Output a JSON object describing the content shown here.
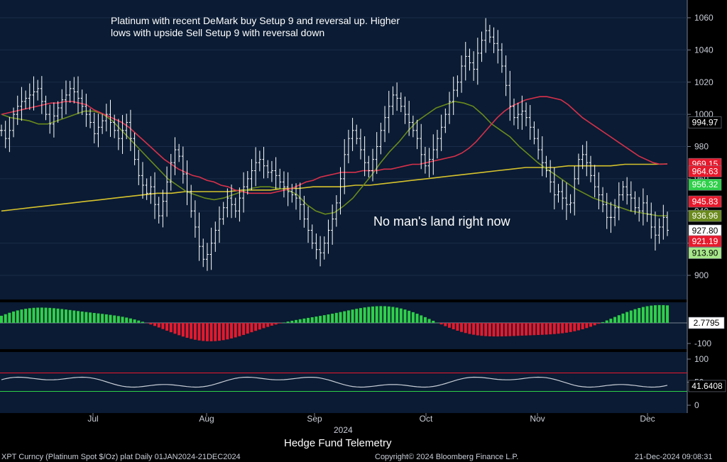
{
  "chart_data": {
    "type": "line",
    "annotation_text": [
      "Platinum with recent DeMark buy Setup 9 and reversal up.  Higher",
      "lows with upside Sell Setup 9 with reversal down"
    ],
    "no_mans_land": "No man's land right now",
    "x_months": [
      "Jul",
      "Aug",
      "Sep",
      "Oct",
      "Nov",
      "Dec"
    ],
    "x_year": "2024",
    "price_axis": {
      "ticks": [
        900,
        920,
        940,
        960,
        980,
        1000,
        1020,
        1040,
        1060
      ],
      "ylim": [
        880,
        1067
      ]
    },
    "price_close": [
      990,
      985,
      990,
      1000,
      1005,
      1008,
      1010,
      1012,
      1014,
      1016,
      1008,
      1000,
      994,
      999,
      1004,
      1009,
      1012,
      1016,
      1014,
      1010,
      1005,
      1000,
      995,
      988,
      992,
      996,
      1000,
      995,
      990,
      985,
      990,
      995,
      985,
      972,
      962,
      956,
      951,
      955,
      944,
      937,
      946,
      958,
      970,
      978,
      974,
      963,
      952,
      940,
      930,
      918,
      910,
      913,
      920,
      928,
      935,
      942,
      948,
      944,
      940,
      948,
      955,
      960,
      965,
      970,
      972,
      968,
      964,
      965,
      962,
      958,
      955,
      952,
      950,
      948,
      944,
      935,
      928,
      920,
      916,
      914,
      920,
      928,
      935,
      945,
      960,
      975,
      985,
      990,
      985,
      978,
      970,
      965,
      972,
      980,
      990,
      998,
      1005,
      1012,
      1010,
      1005,
      1000,
      995,
      990,
      985,
      975,
      968,
      972,
      978,
      985,
      992,
      1000,
      1008,
      1015,
      1020,
      1030,
      1036,
      1032,
      1028,
      1038,
      1046,
      1052,
      1048,
      1044,
      1040,
      1030,
      1018,
      1005,
      998,
      1000,
      1002,
      998,
      992,
      985,
      978,
      970,
      965,
      958,
      950,
      952,
      948,
      944,
      945,
      960,
      972,
      975,
      970,
      962,
      955,
      950,
      944,
      936,
      936,
      942,
      950,
      955,
      950,
      948,
      942,
      940,
      945,
      938,
      930,
      925,
      930,
      936,
      928
    ],
    "ma_red": [
      1000,
      1001,
      1002,
      1003,
      1004,
      1005,
      1006,
      1007,
      1007,
      1008,
      1008,
      1007,
      1006,
      1003,
      1001,
      999,
      997,
      995,
      992,
      988,
      984,
      980,
      976,
      972,
      969,
      966,
      964,
      962,
      961,
      959,
      958,
      956,
      955,
      953,
      952,
      951,
      951,
      951,
      951,
      952,
      953,
      954,
      956,
      958,
      959,
      961,
      962,
      963,
      964,
      964,
      964,
      965,
      965,
      965,
      966,
      966,
      967,
      968,
      969,
      969,
      970,
      971,
      972,
      973,
      974,
      976,
      979,
      983,
      988,
      993,
      998,
      1002,
      1005,
      1007,
      1009,
      1010,
      1011,
      1011,
      1010,
      1009,
      1006,
      1002,
      998,
      995,
      992,
      989,
      986,
      983,
      980,
      977,
      974,
      972,
      970,
      969,
      969.15
    ],
    "ma_green": [
      1000,
      998,
      997,
      996,
      994,
      994,
      996,
      998,
      1000,
      1002,
      1002,
      1000,
      996,
      990,
      984,
      978,
      972,
      966,
      960,
      956,
      952,
      950,
      948,
      947,
      948,
      950,
      952,
      954,
      955,
      955,
      954,
      953,
      950,
      944,
      940,
      938,
      939,
      943,
      948,
      955,
      962,
      970,
      977,
      983,
      990,
      996,
      1000,
      1004,
      1006,
      1008,
      1007,
      1005,
      1000,
      994,
      990,
      986,
      980,
      975,
      970,
      966,
      962,
      958,
      954,
      951,
      948,
      946,
      944,
      942,
      940,
      939,
      938,
      937,
      936.96
    ],
    "ma_yellow": [
      940,
      941,
      942,
      943,
      944,
      945,
      946,
      947,
      948,
      949,
      950,
      951,
      951,
      952,
      952,
      952,
      952,
      953,
      953,
      953,
      954,
      954,
      955,
      955,
      955,
      956,
      956,
      957,
      958,
      959,
      960,
      961,
      962,
      963,
      964,
      965,
      966,
      967,
      967,
      967,
      968,
      968,
      968,
      968,
      969,
      969,
      969,
      969.2
    ],
    "osc_axis": {
      "ticks": [
        -100
      ],
      "value": 2.7795
    },
    "rsi_axis": {
      "ticks": [
        0,
        50,
        100
      ],
      "value": 41.6408
    },
    "value_labels": [
      {
        "text": "994.97",
        "value": 994.97,
        "bg": "#000000",
        "fg": "#ffffff"
      },
      {
        "text": "969.15",
        "value": 969.15,
        "bg": "#e8192c",
        "fg": "#ffffff"
      },
      {
        "text": "964.63",
        "value": 964.63,
        "bg": "#e8192c",
        "fg": "#ffffff"
      },
      {
        "text": "956.32",
        "value": 956.32,
        "bg": "#2fd04a",
        "fg": "#ffffff"
      },
      {
        "text": "945.83",
        "value": 945.83,
        "bg": "#e8192c",
        "fg": "#ffffff"
      },
      {
        "text": "936.96",
        "value": 936.96,
        "bg": "#6a8a1c",
        "fg": "#ffffff"
      },
      {
        "text": "927.80",
        "value": 927.8,
        "bg": "#ffffff",
        "fg": "#000000"
      },
      {
        "text": "921.19",
        "value": 921.19,
        "bg": "#e8192c",
        "fg": "#ffffff"
      },
      {
        "text": "913.90",
        "value": 913.9,
        "bg": "#a6e88a",
        "fg": "#000000"
      }
    ],
    "colors": {
      "panel_bg": "#0a1b33",
      "price": "#ffffff",
      "ma_red": "#d9304a",
      "ma_green": "#6a8a1c",
      "ma_yellow": "#d6c22c",
      "osc_up": "#2fd04a",
      "osc_down": "#e8192c",
      "rsi_line": "#c8cdd6"
    }
  },
  "footer": {
    "title": "Hedge Fund Telemetry",
    "left": "XPT Curncy (Platinum Spot  $/Oz) plat  Daily 01JAN2024-21DEC2024",
    "center": "Copyright© 2024 Bloomberg Finance L.P.",
    "right": "21-Dec-2024 09:08:31"
  }
}
